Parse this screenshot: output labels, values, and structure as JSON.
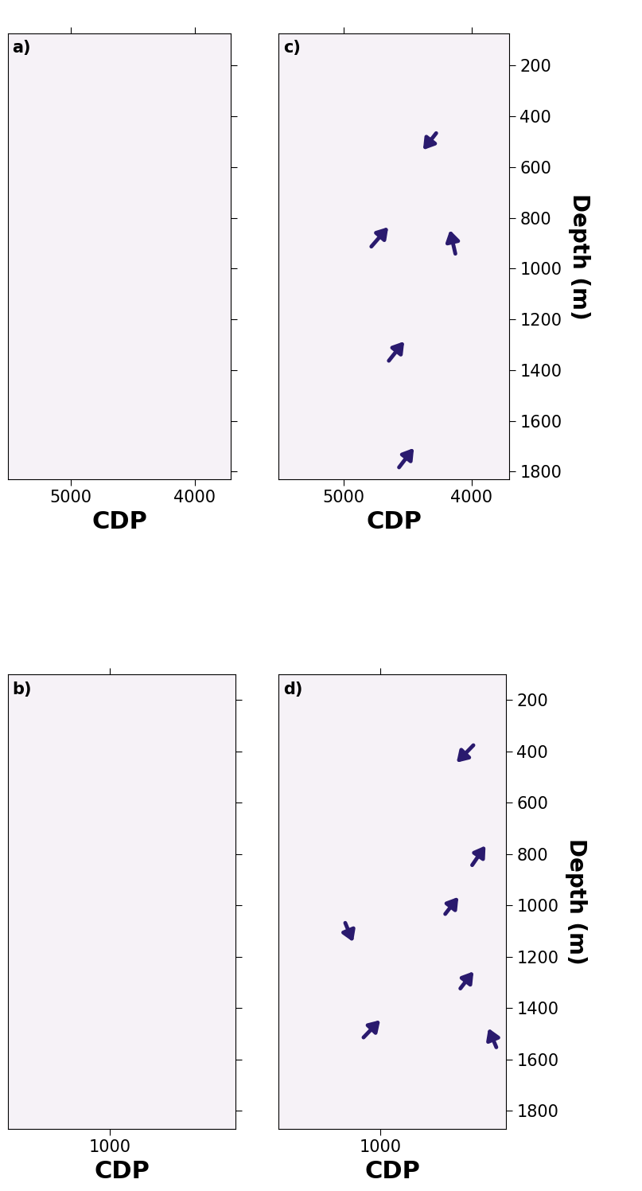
{
  "chart_data": [
    {
      "type": "image",
      "title": "a)",
      "xlabel": "CDP",
      "tick_labels": "x",
      "xlim": [
        5509,
        3708
      ],
      "xticks": [
        5000,
        4000
      ],
      "ylim": [
        1830,
        74
      ],
      "yticks": [
        200,
        400,
        600,
        800,
        1000,
        1200,
        1400,
        1600,
        1800
      ],
      "color": "#2a1a6e",
      "arrows": []
    },
    {
      "type": "image",
      "title": "b)",
      "xlabel": "CDP",
      "tick_labels": "x",
      "xlim": [
        341,
        1814
      ],
      "xticks": [
        1000
      ],
      "ylim": [
        1870,
        100
      ],
      "yticks": [
        200,
        400,
        600,
        800,
        1000,
        1200,
        1400,
        1600,
        1800
      ],
      "color": "#2a1a6e",
      "arrows": []
    },
    {
      "type": "image",
      "title": "c)",
      "xlabel": "CDP",
      "ylabel": "Depth (m)",
      "xlim": [
        5509,
        3708
      ],
      "xticks": [
        5000,
        4000
      ],
      "ylim": [
        1830,
        74
      ],
      "yticks": [
        200,
        400,
        600,
        800,
        1000,
        1200,
        1400,
        1600,
        1800
      ],
      "color": "#2a1a6e",
      "arrows": [
        {
          "from": [
            4267,
            460
          ],
          "to": [
            4391,
            540
          ]
        },
        {
          "from": [
            4795,
            920
          ],
          "to": [
            4640,
            830
          ]
        },
        {
          "from": [
            4124,
            950
          ],
          "to": [
            4174,
            840
          ]
        },
        {
          "from": [
            4658,
            1370
          ],
          "to": [
            4516,
            1280
          ]
        },
        {
          "from": [
            4578,
            1790
          ],
          "to": [
            4441,
            1700
          ]
        }
      ]
    },
    {
      "type": "image",
      "title": "d)",
      "xlabel": "CDP",
      "ylabel": "Depth (m)",
      "xlim": [
        341,
        1814
      ],
      "xticks": [
        1000
      ],
      "ylim": [
        1870,
        100
      ],
      "yticks": [
        200,
        400,
        600,
        800,
        1000,
        1200,
        1400,
        1600,
        1800
      ],
      "color": "#2a1a6e",
      "arrows": [
        {
          "from": [
            1613,
            370
          ],
          "to": [
            1484,
            450
          ]
        },
        {
          "from": [
            1587,
            850
          ],
          "to": [
            1690,
            760
          ]
        },
        {
          "from": [
            1412,
            1040
          ],
          "to": [
            1515,
            960
          ]
        },
        {
          "from": [
            768,
            1060
          ],
          "to": [
            830,
            1150
          ]
        },
        {
          "from": [
            1510,
            1330
          ],
          "to": [
            1613,
            1250
          ]
        },
        {
          "from": [
            882,
            1520
          ],
          "to": [
            1010,
            1440
          ]
        },
        {
          "from": [
            1757,
            1560
          ],
          "to": [
            1695,
            1470
          ]
        }
      ]
    }
  ]
}
